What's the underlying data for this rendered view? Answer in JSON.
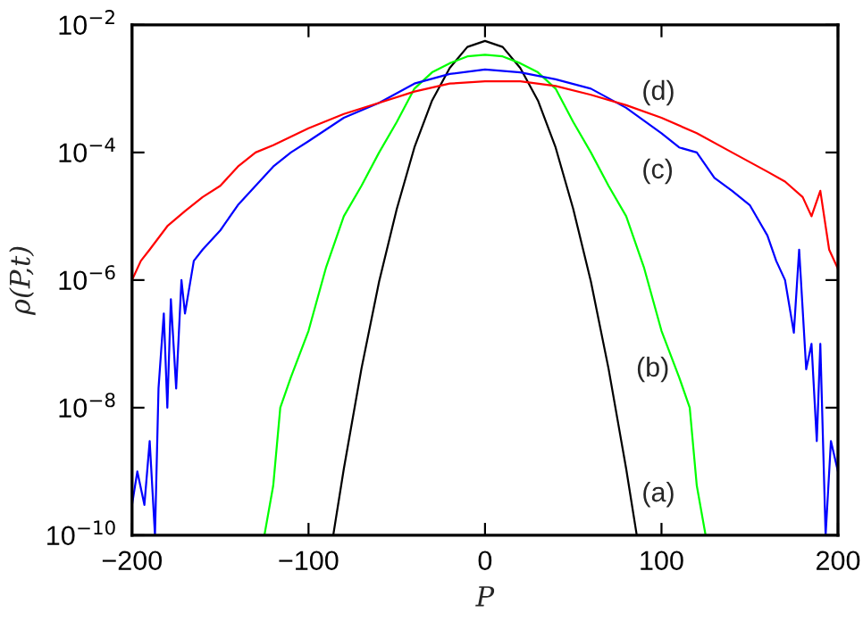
{
  "chart_data": {
    "type": "line",
    "xlabel": "P",
    "ylabel": "ρ(P,t)",
    "log": "y",
    "grid": false,
    "legend": false,
    "line_style": "solid",
    "marker": "none",
    "xlim": [
      -200,
      200
    ],
    "xticks": [
      -200,
      -100,
      0,
      100,
      200
    ],
    "ylim": [
      1e-10,
      0.01
    ],
    "yticks": [
      {
        "value": 1e-10,
        "label": "10$^{−10}$"
      },
      {
        "value": 1e-08,
        "label": "10$^{−8}$"
      },
      {
        "value": 1e-06,
        "label": "10$^{−6}$"
      },
      {
        "value": 0.0001,
        "label": "10$^{−4}$"
      },
      {
        "value": 0.01,
        "label": "10$^{−2}$"
      }
    ],
    "series": [
      {
        "color": "#000000",
        "x": [
          -86,
          -80,
          -70,
          -60,
          -50,
          -40,
          -30,
          -20,
          -10,
          0,
          10,
          20,
          30,
          40,
          50,
          60,
          70,
          80,
          86
        ],
        "values": [
          1e-10,
          1.1e-09,
          4.1e-08,
          9.5e-07,
          1.3e-05,
          0.00012,
          0.00065,
          0.0021,
          0.0045,
          0.0056,
          0.0045,
          0.0021,
          0.00065,
          0.00012,
          1.3e-05,
          9.5e-07,
          4.1e-08,
          1.1e-09,
          1e-10
        ]
      },
      {
        "color": "#00ff00",
        "x": [
          -125,
          -120,
          -116,
          -110,
          -100,
          -90,
          -80,
          -70,
          -60,
          -50,
          -40,
          -30,
          -20,
          -10,
          0,
          10,
          20,
          30,
          40,
          50,
          60,
          70,
          80,
          90,
          100,
          110,
          116,
          120,
          125
        ],
        "values": [
          1e-10,
          6e-10,
          1e-08,
          3e-08,
          1.6e-07,
          1.6e-06,
          1e-05,
          3e-05,
          0.0001,
          0.0003,
          0.001,
          0.0018,
          0.0025,
          0.0032,
          0.0034,
          0.0032,
          0.0025,
          0.0018,
          0.001,
          0.0003,
          0.0001,
          3e-05,
          1e-05,
          1.6e-06,
          1.6e-07,
          3e-08,
          1e-08,
          6e-10,
          1e-10
        ]
      },
      {
        "color": "#0000ff",
        "x": [
          -200,
          -197,
          -193,
          -190,
          -187,
          -185,
          -182,
          -180,
          -178,
          -175,
          -172,
          -170,
          -165,
          -160,
          -150,
          -140,
          -130,
          -120,
          -110,
          -100,
          -80,
          -60,
          -40,
          -20,
          0,
          20,
          40,
          60,
          80,
          100,
          110,
          120,
          130,
          140,
          150,
          160,
          165,
          170,
          175,
          178,
          182,
          185,
          188,
          190,
          193,
          196,
          200
        ],
        "values": [
          3e-10,
          1e-09,
          3e-10,
          3e-09,
          1e-10,
          2e-08,
          3e-07,
          1e-08,
          5e-07,
          2e-08,
          1e-06,
          3e-07,
          2e-06,
          3e-06,
          6e-06,
          1.5e-05,
          3e-05,
          6e-05,
          0.0001,
          0.00015,
          0.00035,
          0.0006,
          0.0012,
          0.0017,
          0.002,
          0.0018,
          0.0014,
          0.001,
          0.0005,
          0.0002,
          0.00012,
          0.0001,
          4e-05,
          2.5e-05,
          1.5e-05,
          5e-06,
          2e-06,
          1e-06,
          1.5e-07,
          3e-06,
          4e-08,
          1e-07,
          3e-09,
          1e-07,
          1e-10,
          3e-09,
          1e-09
        ]
      },
      {
        "color": "#ff0000",
        "x": [
          -200,
          -195,
          -190,
          -180,
          -170,
          -160,
          -150,
          -140,
          -130,
          -120,
          -100,
          -80,
          -60,
          -40,
          -20,
          0,
          20,
          40,
          60,
          80,
          100,
          120,
          140,
          160,
          170,
          180,
          185,
          190,
          195,
          200
        ],
        "values": [
          1e-06,
          2e-06,
          3e-06,
          7e-06,
          1.2e-05,
          2e-05,
          3e-05,
          6e-05,
          0.0001,
          0.00013,
          0.00024,
          0.0004,
          0.0006,
          0.0009,
          0.0012,
          0.0013,
          0.0013,
          0.0011,
          0.0008,
          0.00055,
          0.00035,
          0.0002,
          0.0001,
          5e-05,
          3.5e-05,
          2e-05,
          1e-05,
          2.5e-05,
          3e-06,
          1.5e-06
        ]
      }
    ],
    "annotations": [
      "(a)",
      "(b)",
      "(c)",
      "(d)"
    ]
  }
}
